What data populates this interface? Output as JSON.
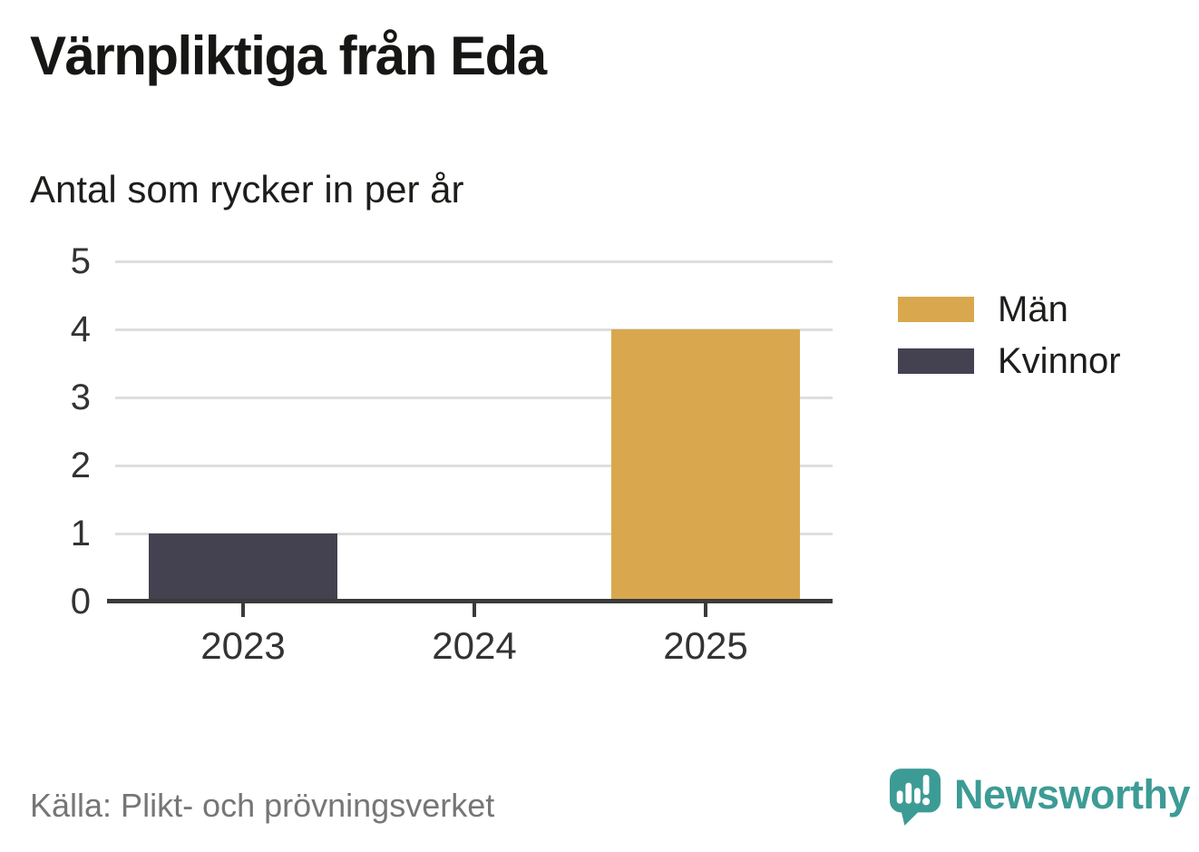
{
  "header": {
    "title": "Värnpliktiga från Eda",
    "subtitle": "Antal som rycker in per år"
  },
  "chart_data": {
    "type": "bar",
    "categories": [
      "2023",
      "2024",
      "2025"
    ],
    "series": [
      {
        "name": "Män",
        "color": "#D9A84E",
        "values": [
          0,
          0,
          4
        ]
      },
      {
        "name": "Kvinnor",
        "color": "#444150",
        "values": [
          1,
          0,
          0
        ]
      }
    ],
    "title": "Värnpliktiga från Eda",
    "subtitle": "Antal som rycker in per år",
    "xlabel": "",
    "ylabel": "",
    "ylim": [
      0,
      5
    ],
    "yticks": [
      0,
      1,
      2,
      3,
      4,
      5
    ],
    "grid": true,
    "legend_position": "right"
  },
  "legend": {
    "items": [
      {
        "label": "Män",
        "color": "#D9A84E"
      },
      {
        "label": "Kvinnor",
        "color": "#444150"
      }
    ]
  },
  "footer": {
    "source": "Källa: Plikt- och prövningsverket",
    "brand": "Newsworthy"
  },
  "colors": {
    "bar_men": "#D9A84E",
    "bar_women": "#444150",
    "gridline": "#DEDEDE",
    "axis": "#3B3B3B",
    "text_dark": "#1D1D1B",
    "text_muted": "#767676",
    "brand_teal": "#3D9B95",
    "background": "#FFFFFF"
  }
}
